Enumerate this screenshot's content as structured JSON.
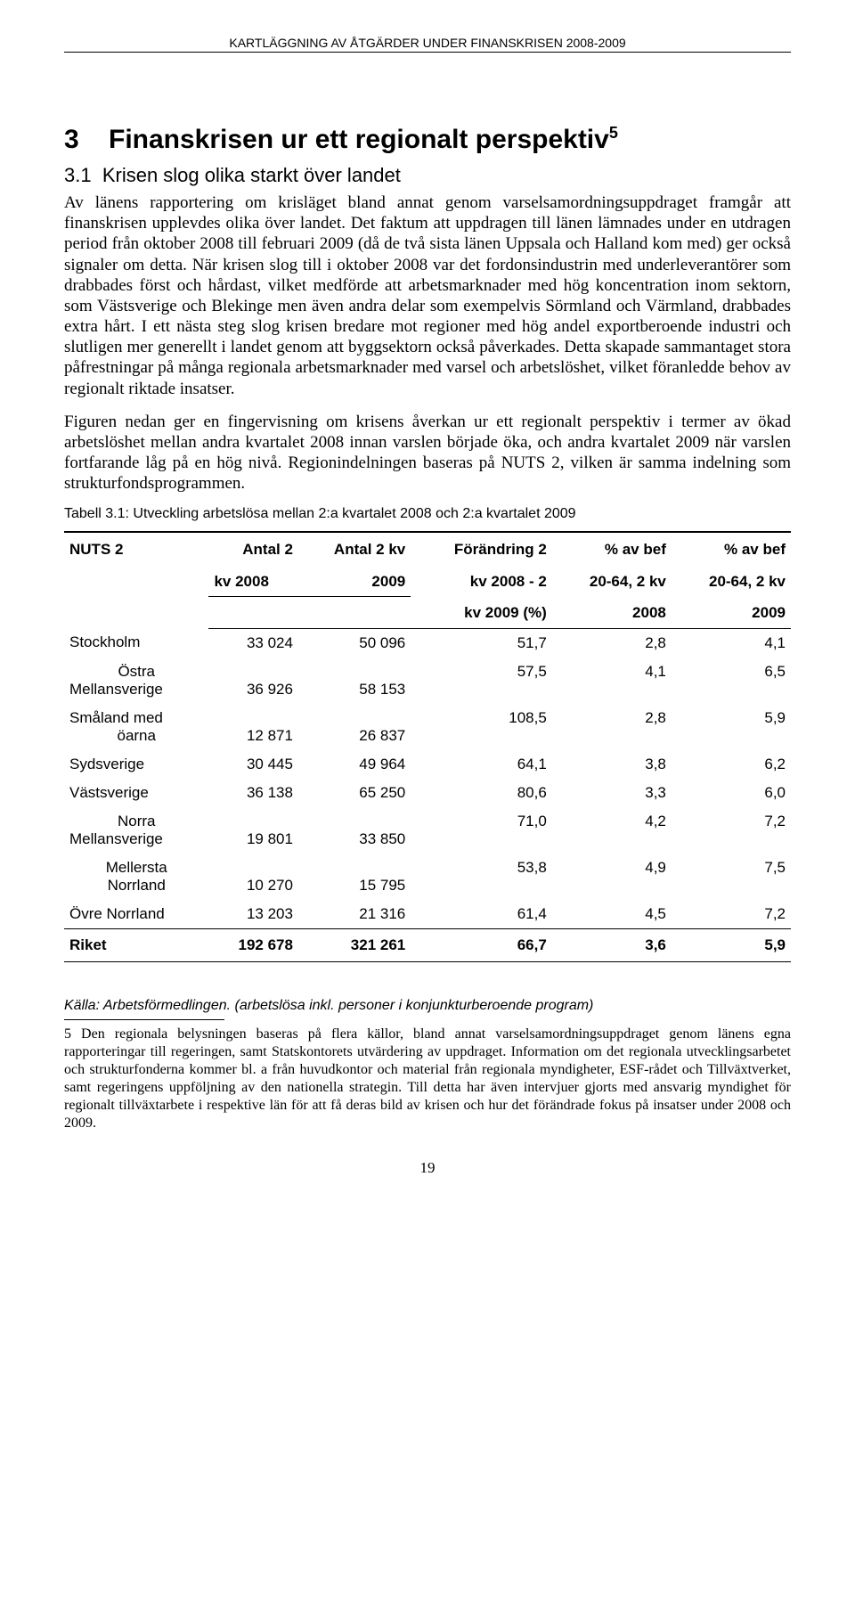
{
  "header": {
    "running": "KARTLÄGGNING AV ÅTGÄRDER UNDER FINANSKRISEN 2008-2009"
  },
  "section": {
    "number": "3",
    "title": "Finanskrisen ur ett regionalt perspektiv",
    "footnote_marker": "5"
  },
  "subsection": {
    "number": "3.1",
    "title": "Krisen slog olika starkt över landet"
  },
  "paragraphs": {
    "p1": "Av länens rapportering om krisläget bland annat genom varselsamordningsuppdraget framgår att finanskrisen upplevdes olika över landet. Det faktum att uppdragen till länen lämnades under en utdragen period från oktober 2008 till februari 2009 (då de två sista länen Uppsala och Halland kom med) ger också signaler om detta. När krisen slog till i oktober 2008 var det fordonsindustrin med underleverantörer som drabbades först och hårdast, vilket medförde att arbetsmarknader med hög koncentration inom sektorn, som Västsverige och Blekinge men även andra delar som exempelvis Sörmland och Värmland, drabbades extra hårt. I ett nästa steg slog krisen bredare mot regioner med hög andel exportberoende industri och slutligen mer generellt i landet genom att byggsektorn också påverkades. Detta skapade sammantaget stora påfrestningar på många regionala arbetsmarknader med varsel och arbetslöshet, vilket föranledde behov av regionalt riktade insatser.",
    "p2": "Figuren nedan ger en fingervisning om krisens åverkan ur ett regionalt perspektiv i termer av ökad arbetslöshet mellan andra kvartalet 2008 innan varslen började öka, och andra kvartalet 2009 när varslen fortfarande låg på en hög nivå. Regionindelningen baseras på NUTS 2, vilken är samma indelning som strukturfondsprogrammen."
  },
  "table": {
    "caption": "Tabell 3.1: Utveckling arbetslösa mellan 2:a kvartalet 2008 och 2:a kvartalet 2009",
    "headers": {
      "c0": "NUTS 2",
      "c1_l1": "Antal 2",
      "c1_l2": "kv 2008",
      "c2_l1": "Antal 2 kv",
      "c2_l2": "2009",
      "c3_l1": "Förändring 2",
      "c3_l2": "kv 2008 - 2",
      "c3_l3": "kv 2009 (%)",
      "c4_l1": "% av bef",
      "c4_l2": "20-64, 2 kv",
      "c4_l3": "2008",
      "c5_l1": "% av bef",
      "c5_l2": "20-64, 2 kv",
      "c5_l3": "2009"
    },
    "rows": [
      {
        "r0": "Stockholm",
        "r1": "33 024",
        "r2": "50 096",
        "r3": "51,7",
        "r4": "2,8",
        "r5": "4,1"
      },
      {
        "pre": "Östra",
        "r0": "Mellansverige",
        "r1": "36 926",
        "r2": "58 153",
        "r3": "57,5",
        "r4": "4,1",
        "r5": "6,5"
      },
      {
        "pre": "Småland med",
        "r0": "öarna",
        "r1": "12 871",
        "r2": "26 837",
        "r3": "108,5",
        "r4": "2,8",
        "r5": "5,9"
      },
      {
        "r0": "Sydsverige",
        "r1": "30 445",
        "r2": "49 964",
        "r3": "64,1",
        "r4": "3,8",
        "r5": "6,2"
      },
      {
        "r0": "Västsverige",
        "r1": "36 138",
        "r2": "65 250",
        "r3": "80,6",
        "r4": "3,3",
        "r5": "6,0"
      },
      {
        "pre": "Norra",
        "r0": "Mellansverige",
        "r1": "19 801",
        "r2": "33 850",
        "r3": "71,0",
        "r4": "4,2",
        "r5": "7,2"
      },
      {
        "pre": "Mellersta",
        "r0": "Norrland",
        "r1": "10 270",
        "r2": "15 795",
        "r3": "53,8",
        "r4": "4,9",
        "r5": "7,5"
      },
      {
        "r0": "Övre Norrland",
        "r1": "13 203",
        "r2": "21 316",
        "r3": "61,4",
        "r4": "4,5",
        "r5": "7,2"
      }
    ],
    "totals": {
      "r0": "Riket",
      "r1": "192 678",
      "r2": "321 261",
      "r3": "66,7",
      "r4": "3,6",
      "r5": "5,9"
    }
  },
  "source": "Källa: Arbetsförmedlingen. (arbetslösa inkl. personer i konjunkturberoende program)",
  "footnote": "5 Den regionala belysningen baseras på flera källor, bland annat varselsamordningsuppdraget genom länens egna rapporteringar till regeringen, samt Statskontorets utvärdering av uppdraget. Information om det regionala utvecklingsarbetet och strukturfonderna kommer bl. a från huvudkontor och material från regionala myndigheter, ESF-rådet och Tillväxtverket, samt regeringens uppföljning av den nationella strategin. Till detta har även intervjuer gjorts med ansvarig myndighet för regionalt tillväxtarbete i respektive län för att få deras bild av krisen och hur det förändrade fokus på insatser under 2008 och 2009.",
  "page_number": "19"
}
